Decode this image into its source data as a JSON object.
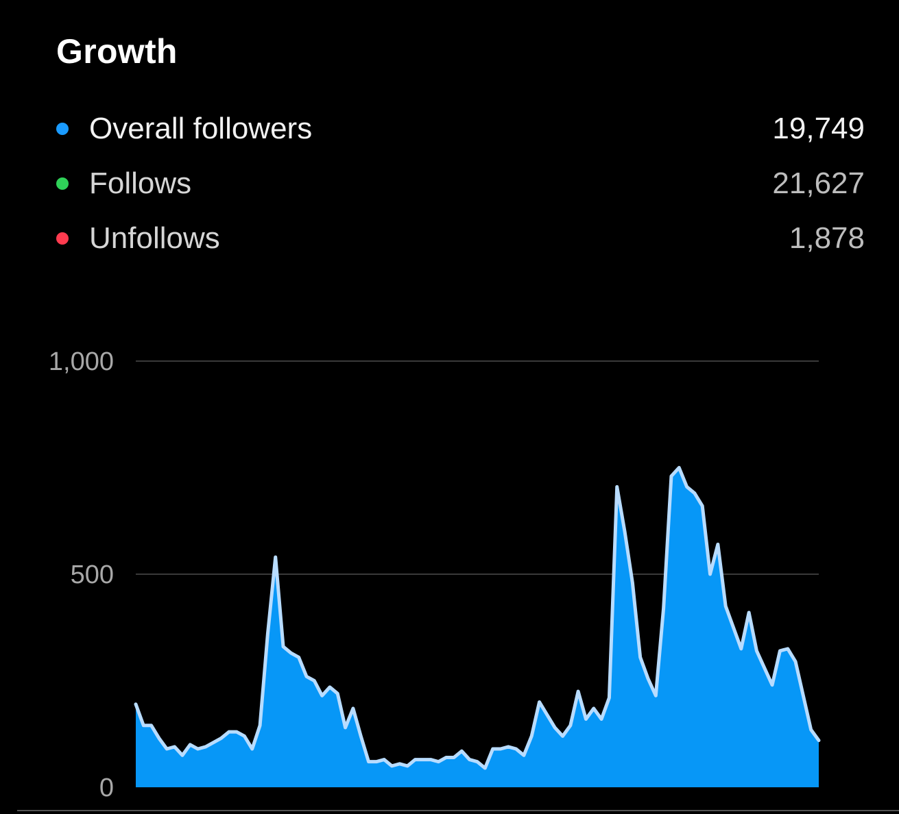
{
  "header": {
    "title": "Growth"
  },
  "legend": [
    {
      "key": "overall",
      "label": "Overall followers",
      "value": "19,749",
      "color": "#1a9bff"
    },
    {
      "key": "follows",
      "label": "Follows",
      "value": "21,627",
      "color": "#2fd158"
    },
    {
      "key": "unfollows",
      "label": "Unfollows",
      "value": "1,878",
      "color": "#ff3b4f"
    }
  ],
  "chart_data": {
    "type": "area",
    "title": "",
    "xlabel": "",
    "ylabel": "",
    "ylim": [
      0,
      1000
    ],
    "yticks": [
      {
        "value": 0,
        "label": "0"
      },
      {
        "value": 500,
        "label": "500"
      },
      {
        "value": 1000,
        "label": "1,000"
      }
    ],
    "grid": true,
    "fill_color": "#0797f7",
    "line_color": "#b8dcff",
    "series": [
      {
        "values": [
          195,
          145,
          145,
          115,
          90,
          95,
          75,
          100,
          90,
          95,
          105,
          115,
          130,
          130,
          120,
          90,
          145,
          360,
          540,
          330,
          315,
          305,
          260,
          250,
          215,
          235,
          220,
          140,
          185,
          120,
          60,
          60,
          65,
          50,
          55,
          50,
          65,
          65,
          65,
          60,
          70,
          70,
          85,
          65,
          60,
          45,
          90,
          90,
          95,
          90,
          75,
          120,
          200,
          170,
          140,
          120,
          145,
          225,
          160,
          185,
          160,
          210,
          705,
          600,
          480,
          305,
          255,
          215,
          420,
          730,
          750,
          705,
          690,
          660,
          500,
          570,
          425,
          375,
          325,
          410,
          320,
          280,
          240,
          320,
          325,
          295,
          215,
          135,
          110
        ]
      }
    ]
  }
}
